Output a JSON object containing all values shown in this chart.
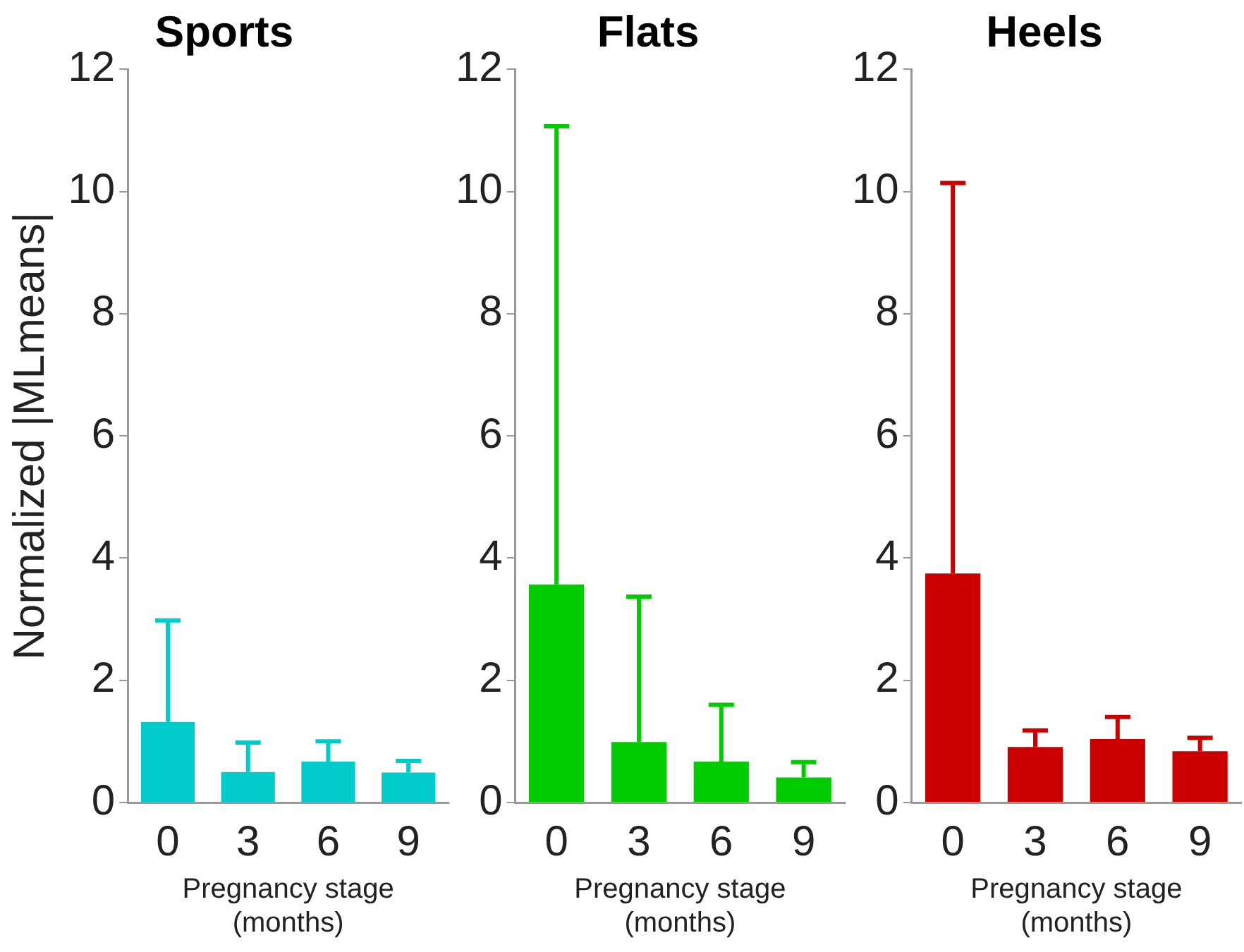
{
  "chart_data": [
    {
      "type": "bar",
      "title": "Sports",
      "ylabel": "Normalized |MLmeans|",
      "xlabel": "Pregnancy stage\n(months)",
      "categories": [
        "0",
        "3",
        "6",
        "9"
      ],
      "values": [
        1.32,
        0.5,
        0.67,
        0.49
      ],
      "errors": [
        [
          1.32,
          2.98
        ],
        [
          0.5,
          0.98
        ],
        [
          0.67,
          1.0
        ],
        [
          0.49,
          0.68
        ]
      ],
      "color": "#00cccc",
      "ylim": [
        0,
        12
      ],
      "yticks": [
        0,
        2,
        4,
        6,
        8,
        10,
        12
      ],
      "grid": false
    },
    {
      "type": "bar",
      "title": "Flats",
      "xlabel": "Pregnancy stage\n(months)",
      "categories": [
        "0",
        "3",
        "6",
        "9"
      ],
      "values": [
        3.57,
        0.99,
        0.67,
        0.41
      ],
      "errors": [
        [
          3.57,
          11.07
        ],
        [
          0.99,
          3.37
        ],
        [
          0.67,
          1.6
        ],
        [
          0.41,
          0.66
        ]
      ],
      "color": "#00cc00",
      "ylim": [
        0,
        12
      ],
      "yticks": [
        0,
        2,
        4,
        6,
        8,
        10,
        12
      ],
      "grid": false
    },
    {
      "type": "bar",
      "title": "Heels",
      "xlabel": "Pregnancy stage\n(months)",
      "categories": [
        "0",
        "3",
        "6",
        "9"
      ],
      "values": [
        3.75,
        0.91,
        1.04,
        0.84
      ],
      "errors": [
        [
          3.75,
          10.14
        ],
        [
          0.91,
          1.18
        ],
        [
          1.04,
          1.4
        ],
        [
          0.84,
          1.06
        ]
      ],
      "color": "#cc0000",
      "ylim": [
        0,
        12
      ],
      "yticks": [
        0,
        2,
        4,
        6,
        8,
        10,
        12
      ],
      "grid": false
    }
  ]
}
